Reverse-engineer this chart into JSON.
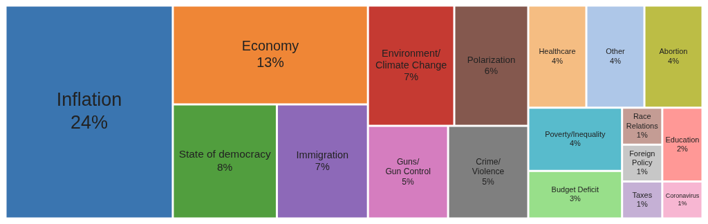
{
  "chart_data": {
    "type": "other",
    "categories": [
      "Inflation",
      "Economy",
      "State of democracy",
      "Immigration",
      "Environment/\nClimate Change",
      "Polarization",
      "Guns/\nGun Control",
      "Crime/\nViolence",
      "Healthcare",
      "Other",
      "Abortion",
      "Poverty/Inequality",
      "Budget Deficit",
      "Race Relations",
      "Foreign Policy",
      "Education",
      "Taxes",
      "Coronavirus"
    ],
    "values": [
      24,
      13,
      8,
      7,
      7,
      6,
      5,
      5,
      4,
      4,
      4,
      4,
      3,
      1,
      1,
      2,
      1,
      1
    ],
    "value_labels": [
      "24%",
      "13%",
      "8%",
      "7%",
      "7%",
      "6%",
      "5%",
      "5%",
      "4%",
      "4%",
      "4%",
      "4%",
      "3%",
      "1%",
      "1%",
      "2%",
      "1%",
      "1%"
    ],
    "colors": [
      "#3a75b0",
      "#ef8636",
      "#519e3e",
      "#8d69b8",
      "#c53a32",
      "#84584e",
      "#d57dbf",
      "#7f7f7f",
      "#f5bd82",
      "#aec7e8",
      "#bcbd45",
      "#58bbcc",
      "#98df8a",
      "#c49c94",
      "#c7c7c7",
      "#ff9896",
      "#c5b0d5",
      "#f7b6d2"
    ]
  }
}
